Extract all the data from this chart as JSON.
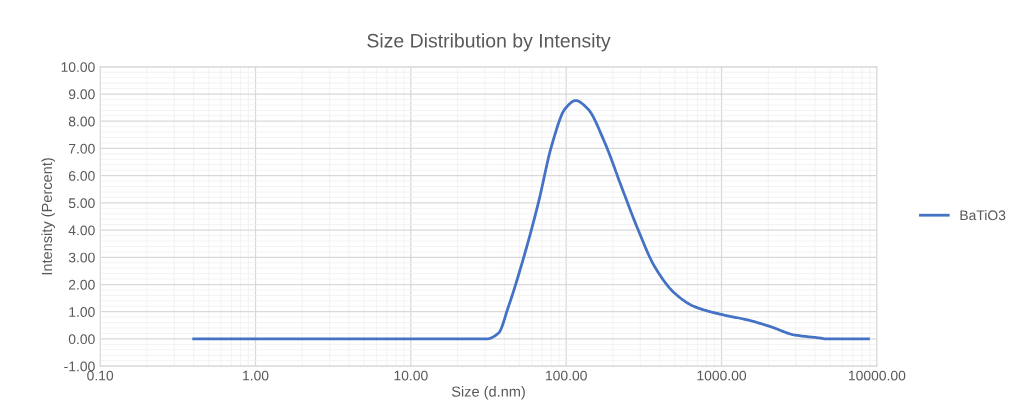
{
  "chart_data": {
    "type": "line",
    "title": "Size Distribution by Intensity",
    "xlabel": "Size (d.nm)",
    "ylabel": "Intensity (Percent)",
    "log": "x",
    "grid": true,
    "legend": "right",
    "marker": "none",
    "line_style": "solid",
    "xlim": [
      0.1,
      10000
    ],
    "xticks": [
      {
        "value": 0.1,
        "label": "0.10"
      },
      {
        "value": 1,
        "label": "1.00"
      },
      {
        "value": 10,
        "label": "10.00"
      },
      {
        "value": 100,
        "label": "100.00"
      },
      {
        "value": 1000,
        "label": "1000.00"
      },
      {
        "value": 10000,
        "label": "10000.00"
      }
    ],
    "ylim": [
      -1,
      10
    ],
    "yticks": [
      {
        "value": -1,
        "label": "-1.00"
      },
      {
        "value": 0,
        "label": "0.00"
      },
      {
        "value": 1,
        "label": "1.00"
      },
      {
        "value": 2,
        "label": "2.00"
      },
      {
        "value": 3,
        "label": "3.00"
      },
      {
        "value": 4,
        "label": "4.00"
      },
      {
        "value": 5,
        "label": "5.00"
      },
      {
        "value": 6,
        "label": "6.00"
      },
      {
        "value": 7,
        "label": "7.00"
      },
      {
        "value": 8,
        "label": "8.00"
      },
      {
        "value": 9,
        "label": "9.00"
      },
      {
        "value": 10,
        "label": "10.00"
      }
    ],
    "series": [
      {
        "name": "BaTiO3",
        "color": "#4472c4",
        "x": [
          0.4,
          1,
          10,
          30.7,
          36.6,
          42.5,
          54.3,
          66.2,
          80.6,
          98.2,
          115,
          138,
          177,
          226,
          290,
          370,
          497,
          668,
          1014,
          1468,
          2071,
          2924,
          4335,
          4700,
          8830
        ],
        "values": [
          0,
          0,
          0,
          0,
          0.21,
          1.19,
          3.16,
          5.0,
          7.1,
          8.45,
          8.76,
          8.45,
          7.22,
          5.62,
          4.02,
          2.67,
          1.69,
          1.19,
          0.89,
          0.7,
          0.45,
          0.15,
          0.03,
          0,
          0
        ]
      }
    ]
  }
}
